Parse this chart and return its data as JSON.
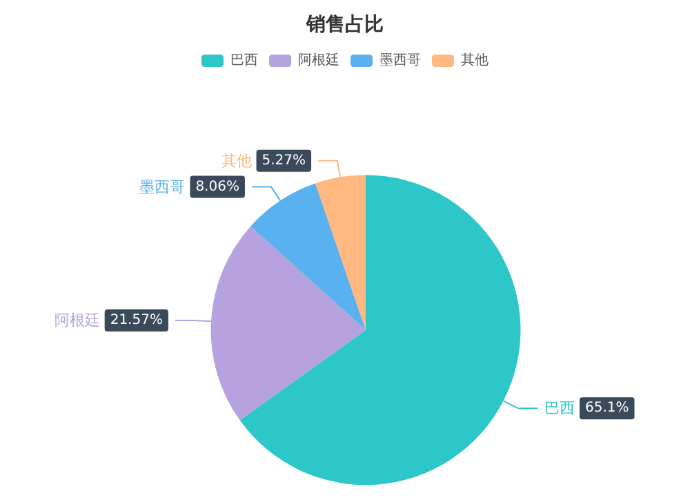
{
  "chart_data": {
    "type": "pie",
    "title": "销售占比",
    "categories": [
      "巴西",
      "阿根廷",
      "墨西哥",
      "其他"
    ],
    "values": [
      65.1,
      21.57,
      8.06,
      5.27
    ],
    "colors": [
      "#2ec7c9",
      "#b6a2de",
      "#5ab1ef",
      "#ffb980"
    ],
    "value_labels": [
      "65.1%",
      "21.57%",
      "8.06%",
      "5.27%"
    ],
    "legend": "top"
  }
}
